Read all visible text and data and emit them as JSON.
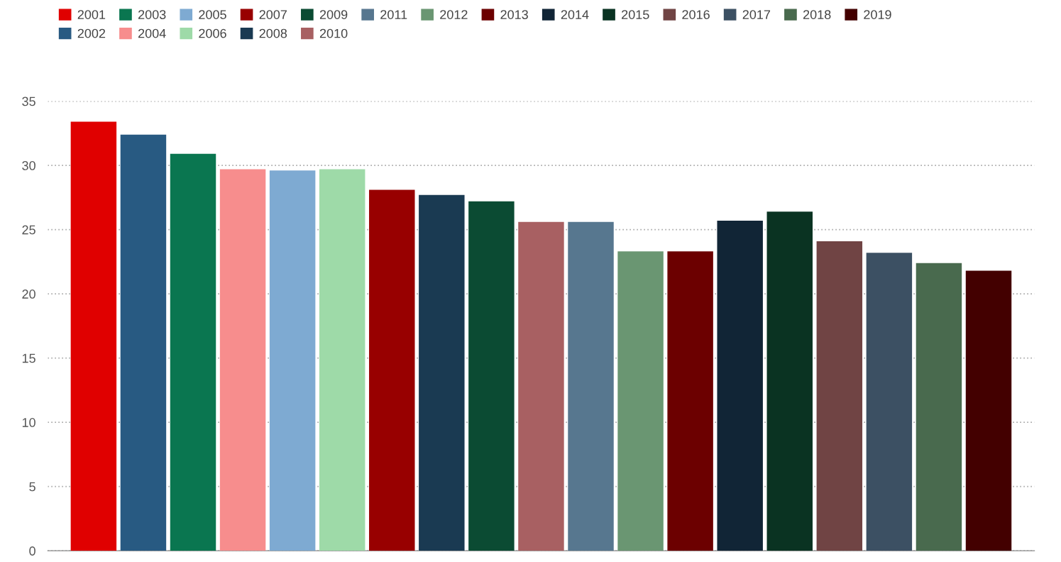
{
  "chart_data": {
    "type": "bar",
    "categories": [
      null
    ],
    "series": [
      {
        "name": "2001",
        "color": "#e00000",
        "values": [
          33.4
        ]
      },
      {
        "name": "2002",
        "color": "#285a82",
        "values": [
          32.4
        ]
      },
      {
        "name": "2003",
        "color": "#0a7650",
        "values": [
          30.9
        ]
      },
      {
        "name": "2004",
        "color": "#f78d8d",
        "values": [
          29.7
        ]
      },
      {
        "name": "2005",
        "color": "#7eaad2",
        "values": [
          29.6
        ]
      },
      {
        "name": "2006",
        "color": "#9edaa8",
        "values": [
          29.7
        ]
      },
      {
        "name": "2007",
        "color": "#980000",
        "values": [
          28.1
        ]
      },
      {
        "name": "2008",
        "color": "#1a3a52",
        "values": [
          27.7
        ]
      },
      {
        "name": "2009",
        "color": "#0b4b33",
        "values": [
          27.2
        ]
      },
      {
        "name": "2010",
        "color": "#a86062",
        "values": [
          25.6
        ]
      },
      {
        "name": "2011",
        "color": "#57778f",
        "values": [
          25.6
        ]
      },
      {
        "name": "2012",
        "color": "#6a9672",
        "values": [
          23.3
        ]
      },
      {
        "name": "2013",
        "color": "#6c0000",
        "values": [
          23.3
        ]
      },
      {
        "name": "2014",
        "color": "#112536",
        "values": [
          25.7
        ]
      },
      {
        "name": "2015",
        "color": "#0a3322",
        "values": [
          26.4
        ]
      },
      {
        "name": "2016",
        "color": "#704444",
        "values": [
          24.1
        ]
      },
      {
        "name": "2017",
        "color": "#3c5063",
        "values": [
          23.2
        ]
      },
      {
        "name": "2018",
        "color": "#496a4e",
        "values": [
          22.4
        ]
      },
      {
        "name": "2019",
        "color": "#430000",
        "values": [
          21.8
        ]
      }
    ],
    "ylim": [
      0,
      35
    ],
    "yticks": [
      0,
      5,
      10,
      15,
      20,
      25,
      30,
      35
    ],
    "grid": "y",
    "legend": "top left"
  }
}
